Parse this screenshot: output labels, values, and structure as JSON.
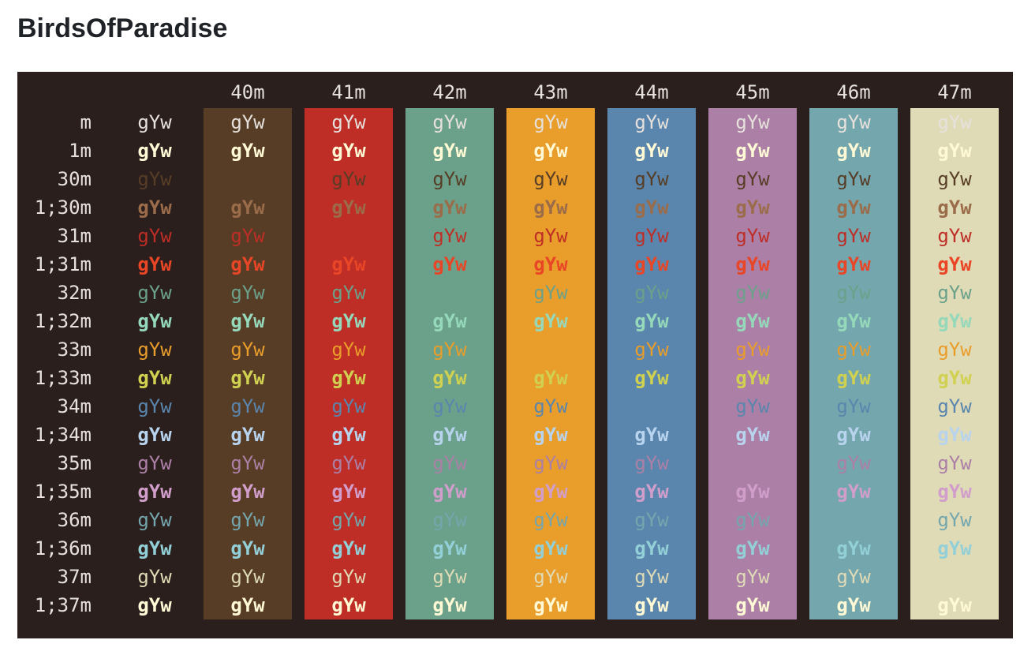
{
  "title": "BirdsOfParadise",
  "terminal": {
    "sample_text": "gYw",
    "default_bg": "#2a1f1d",
    "default_fg": "#e6e1dc",
    "columns": [
      {
        "label": "",
        "bg": "transparent"
      },
      {
        "label": "40m",
        "bg": "#573d26"
      },
      {
        "label": "41m",
        "bg": "#be2d26"
      },
      {
        "label": "42m",
        "bg": "#6ba18a"
      },
      {
        "label": "43m",
        "bg": "#e99d2a"
      },
      {
        "label": "44m",
        "bg": "#5a86ad"
      },
      {
        "label": "45m",
        "bg": "#ac80a6"
      },
      {
        "label": "46m",
        "bg": "#74a6ad"
      },
      {
        "label": "47m",
        "bg": "#e0dbb7"
      }
    ],
    "rows": [
      {
        "label": "m",
        "fg": "#e6e1dc",
        "bold": false
      },
      {
        "label": "1m",
        "fg": "#fff9d5",
        "bold": true
      },
      {
        "label": "30m",
        "fg": "#573d26",
        "bold": false
      },
      {
        "label": "1;30m",
        "fg": "#9b6c4a",
        "bold": true
      },
      {
        "label": "31m",
        "fg": "#be2d26",
        "bold": false
      },
      {
        "label": "1;31m",
        "fg": "#e84627",
        "bold": true
      },
      {
        "label": "32m",
        "fg": "#6ba18a",
        "bold": false
      },
      {
        "label": "1;32m",
        "fg": "#95d8ba",
        "bold": true
      },
      {
        "label": "33m",
        "fg": "#e99d2a",
        "bold": false
      },
      {
        "label": "1;33m",
        "fg": "#d0d150",
        "bold": true
      },
      {
        "label": "34m",
        "fg": "#5a86ad",
        "bold": false
      },
      {
        "label": "1;34m",
        "fg": "#b8d3ed",
        "bold": true
      },
      {
        "label": "35m",
        "fg": "#ac80a6",
        "bold": false
      },
      {
        "label": "1;35m",
        "fg": "#d19ecb",
        "bold": true
      },
      {
        "label": "36m",
        "fg": "#74a6ad",
        "bold": false
      },
      {
        "label": "1;36m",
        "fg": "#93cfd7",
        "bold": true
      },
      {
        "label": "37m",
        "fg": "#e0dbb7",
        "bold": false
      },
      {
        "label": "1;37m",
        "fg": "#fff9d5",
        "bold": true
      }
    ]
  }
}
